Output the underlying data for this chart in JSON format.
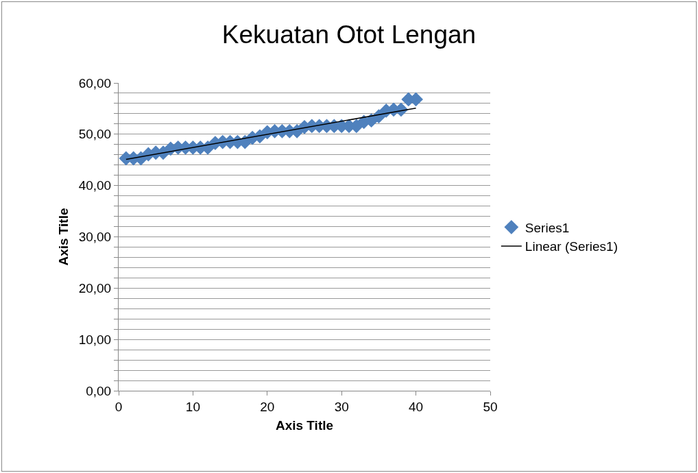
{
  "chart_data": {
    "type": "scatter",
    "title": "Kekuatan Otot Lengan",
    "xlabel": "Axis Title",
    "ylabel": "Axis Title",
    "x": [
      1,
      2,
      3,
      4,
      5,
      6,
      7,
      8,
      9,
      10,
      11,
      12,
      13,
      14,
      15,
      16,
      17,
      18,
      19,
      20,
      21,
      22,
      23,
      24,
      25,
      26,
      27,
      28,
      29,
      30,
      31,
      32,
      33,
      34,
      35,
      36,
      37,
      38,
      39,
      40
    ],
    "series": [
      {
        "name": "Series1",
        "color": "#4f81bd",
        "marker": "diamond",
        "values": [
          45.3,
          45.3,
          45.3,
          46.1,
          46.4,
          46.4,
          47.2,
          47.4,
          47.4,
          47.4,
          47.4,
          47.4,
          48.3,
          48.5,
          48.5,
          48.5,
          48.5,
          49.3,
          49.6,
          50.4,
          50.6,
          50.6,
          50.6,
          50.6,
          51.4,
          51.6,
          51.6,
          51.6,
          51.6,
          51.6,
          51.6,
          51.6,
          52.4,
          52.7,
          53.5,
          54.6,
          54.8,
          54.8,
          56.8,
          56.8
        ]
      },
      {
        "name": "Linear (Series1)",
        "type": "line",
        "color": "#000000",
        "line_style": "solid",
        "marker": "none",
        "x": [
          1,
          40
        ],
        "values": [
          45.1,
          55.1
        ]
      }
    ],
    "xlim": [
      0,
      50
    ],
    "xticks": [
      0,
      10,
      20,
      30,
      40,
      50
    ],
    "ylim": [
      0,
      60
    ],
    "yticks": [
      {
        "value": 0,
        "label": "0,00"
      },
      {
        "value": 2,
        "label": null
      },
      {
        "value": 4,
        "label": null
      },
      {
        "value": 6,
        "label": null
      },
      {
        "value": 8,
        "label": null
      },
      {
        "value": 10,
        "label": "10,00"
      },
      {
        "value": 12,
        "label": null
      },
      {
        "value": 14,
        "label": null
      },
      {
        "value": 16,
        "label": null
      },
      {
        "value": 18,
        "label": null
      },
      {
        "value": 20,
        "label": "20,00"
      },
      {
        "value": 22,
        "label": null
      },
      {
        "value": 24,
        "label": null
      },
      {
        "value": 26,
        "label": null
      },
      {
        "value": 28,
        "label": null
      },
      {
        "value": 30,
        "label": "30,00"
      },
      {
        "value": 32,
        "label": null
      },
      {
        "value": 34,
        "label": null
      },
      {
        "value": 36,
        "label": null
      },
      {
        "value": 38,
        "label": null
      },
      {
        "value": 40,
        "label": "40,00"
      },
      {
        "value": 42,
        "label": null
      },
      {
        "value": 44,
        "label": null
      },
      {
        "value": 46,
        "label": null
      },
      {
        "value": 48,
        "label": null
      },
      {
        "value": 50,
        "label": "50,00"
      },
      {
        "value": 52,
        "label": null
      },
      {
        "value": 54,
        "label": null
      },
      {
        "value": 56,
        "label": null
      },
      {
        "value": 58,
        "label": null
      },
      {
        "value": 60,
        "label": "60,00"
      }
    ],
    "grid": "y",
    "legend": "right"
  }
}
